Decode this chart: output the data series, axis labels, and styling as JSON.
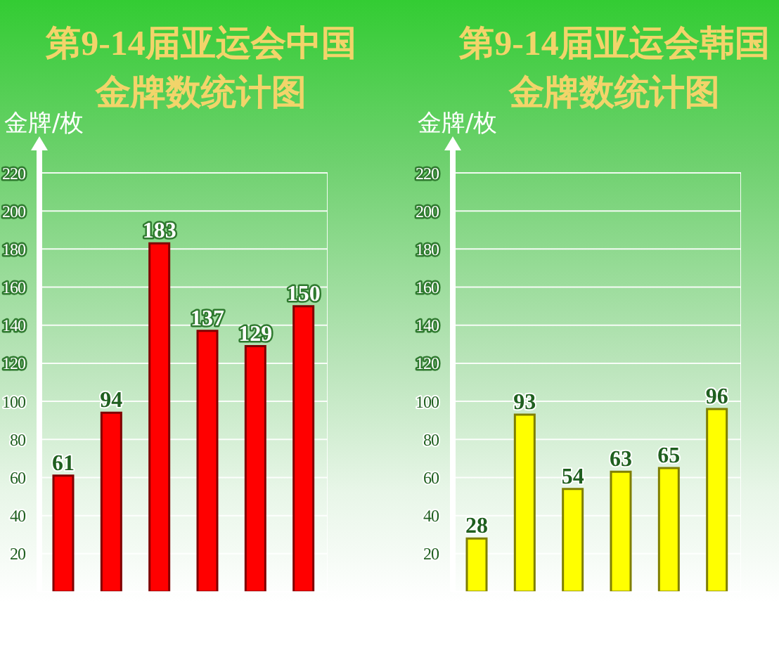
{
  "chart_data": [
    {
      "type": "bar",
      "title": "第9-14届亚运会中国金牌数统计图",
      "ylabel": "金牌/枚",
      "categories": [
        null,
        null,
        null,
        null,
        null,
        null
      ],
      "values": [
        61,
        94,
        183,
        137,
        129,
        150
      ],
      "color": "#ff0000",
      "data_labels": true,
      "ylim": [
        0,
        220
      ],
      "yticks": [
        20,
        40,
        60,
        80,
        100,
        120,
        140,
        160,
        180,
        200,
        220
      ],
      "grid": "y"
    },
    {
      "type": "bar",
      "title": "第9-14届亚运会韩国金牌数统计图",
      "ylabel": "金牌/枚",
      "categories": [
        null,
        null,
        null,
        null,
        null,
        null
      ],
      "values": [
        28,
        93,
        54,
        63,
        65,
        96
      ],
      "color": "#ffff00",
      "data_labels": true,
      "ylim": [
        0,
        220
      ],
      "yticks": [
        20,
        40,
        60,
        80,
        100,
        120,
        140,
        160,
        180,
        200,
        220
      ],
      "grid": "y"
    }
  ]
}
